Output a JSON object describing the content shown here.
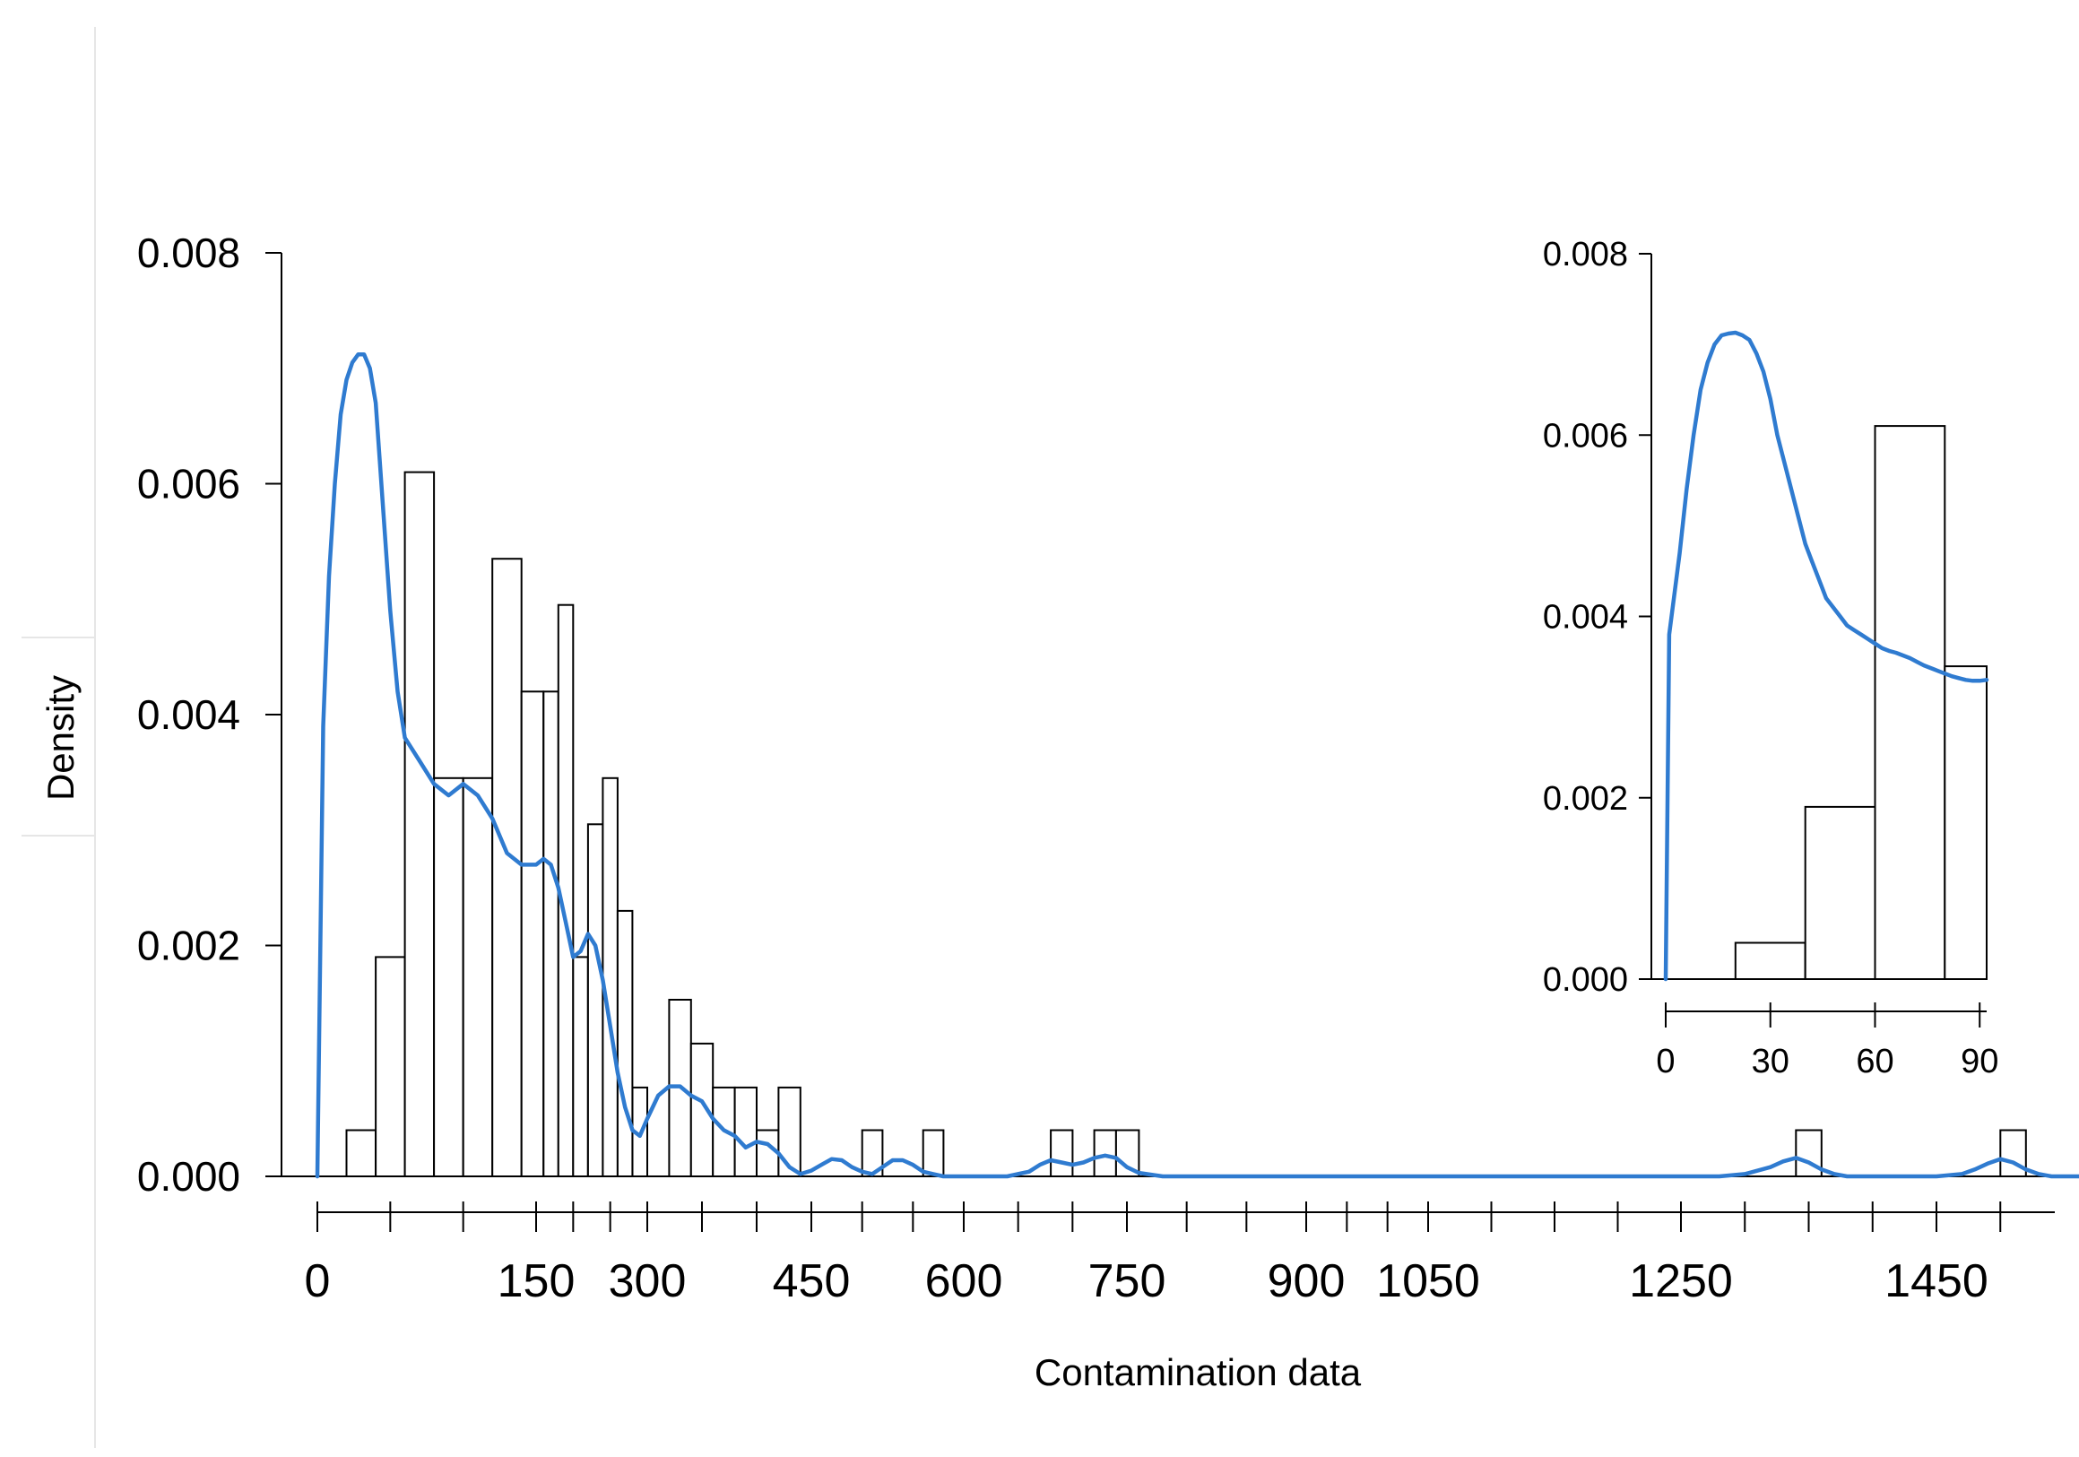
{
  "chart_data": {
    "type": "histogram",
    "xlabel": "Contamination data",
    "ylabel": "Density",
    "grid": false,
    "legend": "none",
    "colors": {
      "density_curve": "#2f7bd0",
      "bars_fill": "#ffffff",
      "bars_edge": "#000000"
    },
    "x_breaks": [
      0,
      150,
      300,
      450,
      600,
      750,
      900,
      1050,
      1250,
      1450
    ],
    "x_tick_labels": [
      "0",
      "150",
      "300",
      "450",
      "600",
      "750",
      "900",
      "1050",
      "1250",
      "1450"
    ],
    "x_range": [
      0,
      1570
    ],
    "y_ticks": [
      0,
      0.002,
      0.004,
      0.006,
      0.008
    ],
    "y_tick_labels": [
      "0.000",
      "0.002",
      "0.004",
      "0.006",
      "0.008"
    ],
    "ylim": [
      0,
      0.008
    ],
    "bin_width": 20,
    "bins": [
      {
        "start": 20,
        "density": 0.0004
      },
      {
        "start": 40,
        "density": 0.0019
      },
      {
        "start": 60,
        "density": 0.0061
      },
      {
        "start": 80,
        "density": 0.00345
      },
      {
        "start": 100,
        "density": 0.00345
      },
      {
        "start": 120,
        "density": 0.00535
      },
      {
        "start": 140,
        "density": 0.0042
      },
      {
        "start": 160,
        "density": 0.0042
      },
      {
        "start": 180,
        "density": 0.00495
      },
      {
        "start": 200,
        "density": 0.0019
      },
      {
        "start": 220,
        "density": 0.00305
      },
      {
        "start": 240,
        "density": 0.00345
      },
      {
        "start": 260,
        "density": 0.0023
      },
      {
        "start": 280,
        "density": 0.00077
      },
      {
        "start": 300,
        "density": 0.0
      },
      {
        "start": 320,
        "density": 0.00153
      },
      {
        "start": 340,
        "density": 0.00115
      },
      {
        "start": 360,
        "density": 0.00077
      },
      {
        "start": 380,
        "density": 0.00077
      },
      {
        "start": 400,
        "density": 0.0004
      },
      {
        "start": 420,
        "density": 0.00077
      },
      {
        "start": 500,
        "density": 0.0004
      },
      {
        "start": 560,
        "density": 0.0004
      },
      {
        "start": 680,
        "density": 0.0004
      },
      {
        "start": 720,
        "density": 0.0004
      },
      {
        "start": 740,
        "density": 0.0004
      },
      {
        "start": 1340,
        "density": 0.0004
      },
      {
        "start": 1500,
        "density": 0.0004
      }
    ],
    "density_curve": {
      "x": [
        0,
        4,
        8,
        12,
        16,
        20,
        24,
        28,
        32,
        36,
        40,
        45,
        50,
        55,
        60,
        70,
        80,
        90,
        100,
        110,
        120,
        130,
        140,
        150,
        160,
        170,
        180,
        190,
        200,
        210,
        220,
        230,
        240,
        250,
        260,
        270,
        280,
        290,
        300,
        310,
        320,
        330,
        340,
        350,
        360,
        370,
        380,
        390,
        400,
        410,
        420,
        430,
        440,
        450,
        460,
        470,
        480,
        490,
        500,
        510,
        520,
        530,
        540,
        550,
        560,
        570,
        580,
        590,
        600,
        620,
        640,
        660,
        670,
        680,
        690,
        700,
        710,
        720,
        730,
        740,
        750,
        760,
        780,
        800,
        900,
        1000,
        1100,
        1200,
        1250,
        1280,
        1300,
        1320,
        1330,
        1340,
        1350,
        1360,
        1370,
        1380,
        1400,
        1450,
        1470,
        1480,
        1490,
        1500,
        1510,
        1520,
        1530,
        1540,
        1560,
        1570
      ],
      "y": [
        0.0,
        0.0039,
        0.0052,
        0.006,
        0.0066,
        0.0069,
        0.00705,
        0.00712,
        0.00712,
        0.007,
        0.0067,
        0.0058,
        0.0049,
        0.0042,
        0.0038,
        0.0036,
        0.0034,
        0.0033,
        0.0034,
        0.0033,
        0.0031,
        0.0028,
        0.0027,
        0.0027,
        0.00275,
        0.0027,
        0.0025,
        0.0022,
        0.0019,
        0.00195,
        0.0021,
        0.002,
        0.0017,
        0.0013,
        0.0009,
        0.0006,
        0.0004,
        0.00035,
        0.0005,
        0.0007,
        0.00078,
        0.00078,
        0.0007,
        0.00065,
        0.0005,
        0.0004,
        0.00035,
        0.00025,
        0.0003,
        0.00028,
        0.0002,
        8e-05,
        2e-05,
        5e-05,
        0.0001,
        0.00015,
        0.00014,
        8e-05,
        4e-05,
        2e-05,
        8e-05,
        0.00014,
        0.00014,
        0.0001,
        4e-05,
        2e-05,
        0.0,
        0.0,
        0.0,
        0.0,
        0.0,
        4e-05,
        0.0001,
        0.00014,
        0.00012,
        0.0001,
        0.00012,
        0.00016,
        0.00018,
        0.00016,
        8e-05,
        3e-05,
        0.0,
        0.0,
        0.0,
        0.0,
        0.0,
        0.0,
        0.0,
        0.0,
        2e-05,
        8e-05,
        0.00013,
        0.00016,
        0.00012,
        6e-05,
        2e-05,
        0.0,
        0.0,
        0.0,
        2e-05,
        6e-05,
        0.00011,
        0.00015,
        0.00012,
        6e-05,
        2e-05,
        0.0,
        0.0,
        0.0
      ]
    },
    "inset": {
      "type": "histogram",
      "x_ticks": [
        0,
        30,
        60,
        90
      ],
      "x_tick_labels": [
        "0",
        "30",
        "60",
        "90"
      ],
      "x_range": [
        0,
        92
      ],
      "y_ticks": [
        0,
        0.002,
        0.004,
        0.006,
        0.008
      ],
      "y_tick_labels": [
        "0.000",
        "0.002",
        "0.004",
        "0.006",
        "0.008"
      ],
      "ylim": [
        0,
        0.008
      ],
      "bin_width": 20,
      "bins": [
        {
          "start": 20,
          "density": 0.0004
        },
        {
          "start": 40,
          "density": 0.0019
        },
        {
          "start": 60,
          "density": 0.0061
        },
        {
          "start": 80,
          "density": 0.00345
        }
      ],
      "density_curve": {
        "x": [
          0,
          1,
          2,
          4,
          6,
          8,
          10,
          12,
          14,
          16,
          18,
          20,
          22,
          24,
          26,
          28,
          30,
          32,
          34,
          36,
          38,
          40,
          42,
          44,
          46,
          48,
          50,
          52,
          54,
          56,
          58,
          60,
          62,
          64,
          66,
          68,
          70,
          72,
          74,
          76,
          78,
          80,
          82,
          84,
          86,
          88,
          90,
          92
        ],
        "y": [
          0.0,
          0.0038,
          0.0041,
          0.0047,
          0.0054,
          0.006,
          0.0065,
          0.0068,
          0.007,
          0.0071,
          0.00712,
          0.00713,
          0.0071,
          0.00705,
          0.0069,
          0.0067,
          0.0064,
          0.006,
          0.0057,
          0.0054,
          0.0051,
          0.0048,
          0.0046,
          0.0044,
          0.0042,
          0.0041,
          0.004,
          0.0039,
          0.00385,
          0.0038,
          0.00375,
          0.0037,
          0.00365,
          0.00362,
          0.0036,
          0.00357,
          0.00354,
          0.0035,
          0.00346,
          0.00343,
          0.0034,
          0.00337,
          0.00334,
          0.00332,
          0.0033,
          0.00329,
          0.00329,
          0.0033
        ]
      }
    }
  }
}
